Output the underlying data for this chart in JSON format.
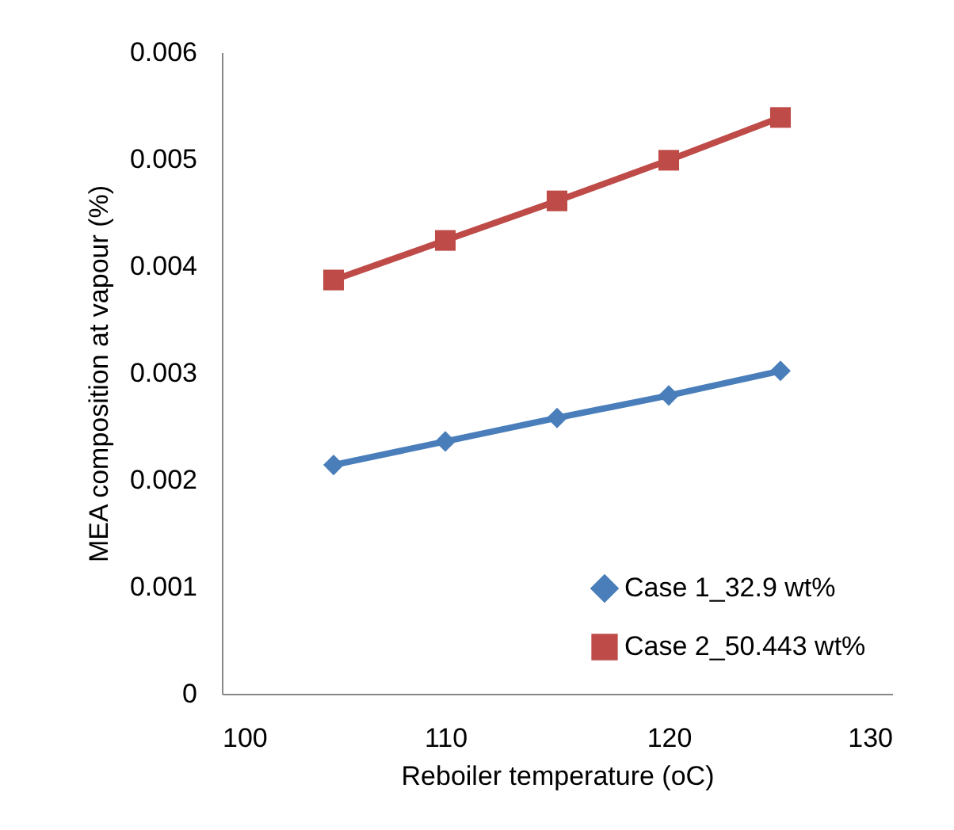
{
  "chart_data": {
    "type": "line",
    "xlabel": "Reboiler temperature (oC)",
    "ylabel": "MEA composition at vapour (%)",
    "x": [
      105,
      110,
      115,
      120,
      125
    ],
    "series": [
      {
        "name": "Case 1_32.9 wt%",
        "color": "#4a7ebb",
        "marker": "diamond",
        "values": [
          0.00214,
          0.00236,
          0.00258,
          0.00279,
          0.00302
        ]
      },
      {
        "name": "Case 2_50.443 wt%",
        "color": "#be4b48",
        "marker": "square",
        "values": [
          0.00387,
          0.00424,
          0.00461,
          0.00499,
          0.00539
        ]
      }
    ],
    "xlim": [
      100,
      130
    ],
    "xticks": [
      100,
      110,
      120,
      130
    ],
    "ylim": [
      0,
      0.006
    ],
    "yticks": [
      0,
      0.001,
      0.002,
      0.003,
      0.004,
      0.005,
      0.006
    ],
    "grid": false,
    "legend": "bottom right",
    "line_style": "solid"
  }
}
